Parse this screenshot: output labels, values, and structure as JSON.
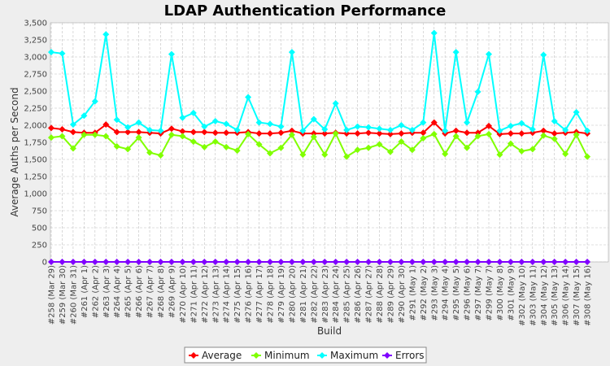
{
  "chart_data": {
    "type": "line",
    "title": "LDAP Authentication Performance",
    "xlabel": "Build",
    "ylabel": "Average Auths per Second",
    "ylim": [
      0,
      3500
    ],
    "y_ticks": [
      "0",
      "250",
      "500",
      "750",
      "1,000",
      "1,250",
      "1,500",
      "1,750",
      "2,000",
      "2,250",
      "2,500",
      "2,750",
      "3,000",
      "3,250",
      "3,500"
    ],
    "grid": true,
    "legend_position": "bottom",
    "categories": [
      "#258 (Mar 29)",
      "#259 (Mar 30)",
      "#260 (Mar 31)",
      "#261 (Apr 1)",
      "#262 (Apr 2)",
      "#263 (Apr 3)",
      "#264 (Apr 4)",
      "#265 (Apr 5)",
      "#266 (Apr 6)",
      "#267 (Apr 7)",
      "#268 (Apr 8)",
      "#269 (Apr 9)",
      "#270 (Apr 10)",
      "#271 (Apr 11)",
      "#272 (Apr 12)",
      "#273 (Apr 13)",
      "#274 (Apr 14)",
      "#275 (Apr 15)",
      "#276 (Apr 16)",
      "#277 (Apr 17)",
      "#278 (Apr 18)",
      "#279 (Apr 19)",
      "#280 (Apr 20)",
      "#281 (Apr 21)",
      "#282 (Apr 22)",
      "#283 (Apr 23)",
      "#284 (Apr 24)",
      "#285 (Apr 25)",
      "#286 (Apr 26)",
      "#287 (Apr 27)",
      "#288 (Apr 28)",
      "#289 (Apr 29)",
      "#290 (Apr 30)",
      "#291 (May 1)",
      "#292 (May 2)",
      "#293 (May 3)",
      "#294 (May 4)",
      "#295 (May 5)",
      "#296 (May 6)",
      "#297 (May 7)",
      "#299 (May 7)",
      "#300 (May 8)",
      "#301 (May 9)",
      "#302 (May 10)",
      "#303 (May 11)",
      "#304 (May 12)",
      "#305 (May 13)",
      "#306 (May 14)",
      "#307 (May 15)",
      "#308 (May 16)"
    ],
    "series": [
      {
        "name": "Average",
        "color": "#ff0000",
        "marker": "diamond",
        "values": [
          1960,
          1940,
          1900,
          1890,
          1890,
          2010,
          1900,
          1900,
          1900,
          1890,
          1880,
          1950,
          1910,
          1900,
          1900,
          1890,
          1890,
          1890,
          1900,
          1880,
          1880,
          1890,
          1920,
          1880,
          1880,
          1880,
          1890,
          1880,
          1880,
          1890,
          1880,
          1870,
          1880,
          1890,
          1890,
          2040,
          1880,
          1920,
          1890,
          1890,
          1990,
          1870,
          1880,
          1880,
          1890,
          1920,
          1880,
          1890,
          1900,
          1880
        ]
      },
      {
        "name": "Minimum",
        "color": "#80ff00",
        "marker": "diamond",
        "values": [
          1820,
          1840,
          1660,
          1860,
          1860,
          1840,
          1690,
          1650,
          1820,
          1600,
          1560,
          1860,
          1840,
          1760,
          1680,
          1760,
          1680,
          1630,
          1870,
          1720,
          1590,
          1670,
          1860,
          1570,
          1830,
          1570,
          1880,
          1540,
          1640,
          1670,
          1720,
          1610,
          1760,
          1640,
          1810,
          1870,
          1580,
          1840,
          1670,
          1840,
          1870,
          1570,
          1730,
          1620,
          1650,
          1850,
          1800,
          1580,
          1860,
          1540
        ]
      },
      {
        "name": "Maximum",
        "color": "#00ffff",
        "marker": "diamond",
        "values": [
          3070,
          3050,
          2010,
          2140,
          2350,
          3330,
          2080,
          1970,
          2040,
          1930,
          1920,
          3040,
          2110,
          2180,
          1980,
          2060,
          2020,
          1930,
          2410,
          2040,
          2020,
          1980,
          3070,
          1920,
          2090,
          1940,
          2320,
          1930,
          1980,
          1970,
          1950,
          1930,
          2000,
          1930,
          2040,
          3350,
          1920,
          3070,
          2040,
          2490,
          3040,
          1920,
          1990,
          2030,
          1940,
          3030,
          2060,
          1930,
          2190,
          1920
        ]
      },
      {
        "name": "Errors",
        "color": "#8000ff",
        "marker": "diamond",
        "values": [
          0,
          0,
          0,
          0,
          0,
          0,
          0,
          0,
          0,
          0,
          0,
          0,
          0,
          0,
          0,
          0,
          0,
          0,
          0,
          0,
          0,
          0,
          0,
          0,
          0,
          0,
          0,
          0,
          0,
          0,
          0,
          0,
          0,
          0,
          0,
          0,
          0,
          0,
          0,
          0,
          0,
          0,
          0,
          0,
          0,
          0,
          0,
          0,
          0,
          0
        ]
      }
    ]
  }
}
